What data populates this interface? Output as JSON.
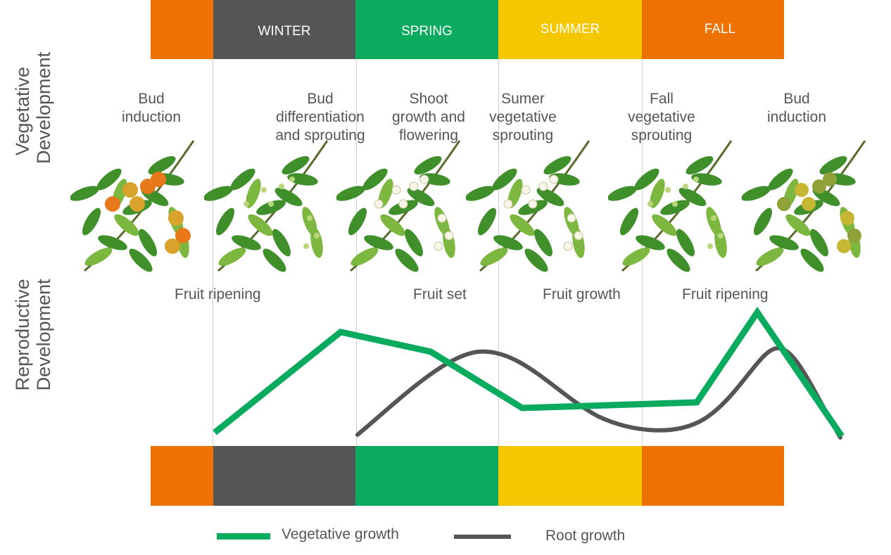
{
  "colors": {
    "fall": "#ee7203",
    "winter": "#555555",
    "spring": "#0aab5e",
    "summer": "#f4c700",
    "vegetative": "#0aab5e",
    "root": "#555555",
    "leaf": "#3f8f2a",
    "leaf_light": "#7cb840"
  },
  "seasons": {
    "winter": "WINTER",
    "spring": "SPRING",
    "summer": "SUMMER",
    "fall": "FALL"
  },
  "side_labels": {
    "vegetative": "Vegetative Development",
    "reproductive": "Reproductive Development"
  },
  "stages": [
    "Bud induction",
    "Bud differentiation and sprouting",
    "Shoot growth and flowering",
    "Sumer vegetative sprouting",
    "Fall vegetative sprouting",
    "Bud induction"
  ],
  "phases": [
    "Fruit ripening",
    "Fruit set",
    "Fruit growth",
    "Fruit ripening"
  ],
  "legend": {
    "vegetative": "Vegetative growth",
    "root": "Root growth"
  },
  "branches": [
    {
      "fruit": "orange"
    },
    {
      "fruit": "buds"
    },
    {
      "fruit": "flowers"
    },
    {
      "fruit": "flowers"
    },
    {
      "fruit": "buds"
    },
    {
      "fruit": "green"
    }
  ]
}
